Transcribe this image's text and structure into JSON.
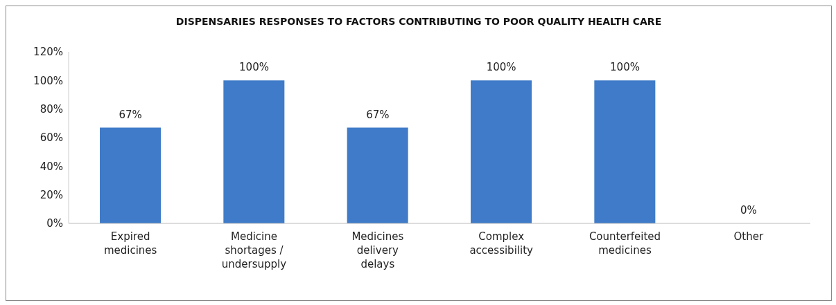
{
  "chart_data": {
    "type": "bar",
    "title": "DISPENSARIES RESPONSES TO FACTORS CONTRIBUTING TO POOR QUALITY HEALTH CARE",
    "categories": [
      "Expired medicines",
      "Medicine shortages / undersupply",
      "Medicines delivery delays",
      "Complex accessibility",
      "Counterfeited medicines",
      "Other"
    ],
    "values": [
      67,
      100,
      67,
      100,
      100,
      0
    ],
    "value_labels": [
      "67%",
      "100%",
      "67%",
      "100%",
      "100%",
      "0%"
    ],
    "color": "#3f7bc9",
    "ylim": [
      0,
      120
    ],
    "yticks": [
      {
        "value": 0,
        "label": "0%"
      },
      {
        "value": 20,
        "label": "20%"
      },
      {
        "value": 40,
        "label": "40%"
      },
      {
        "value": 60,
        "label": "60%"
      },
      {
        "value": 80,
        "label": "80%"
      },
      {
        "value": 100,
        "label": "100%"
      },
      {
        "value": 120,
        "label": "120%"
      }
    ],
    "grid": false,
    "legend": false
  }
}
